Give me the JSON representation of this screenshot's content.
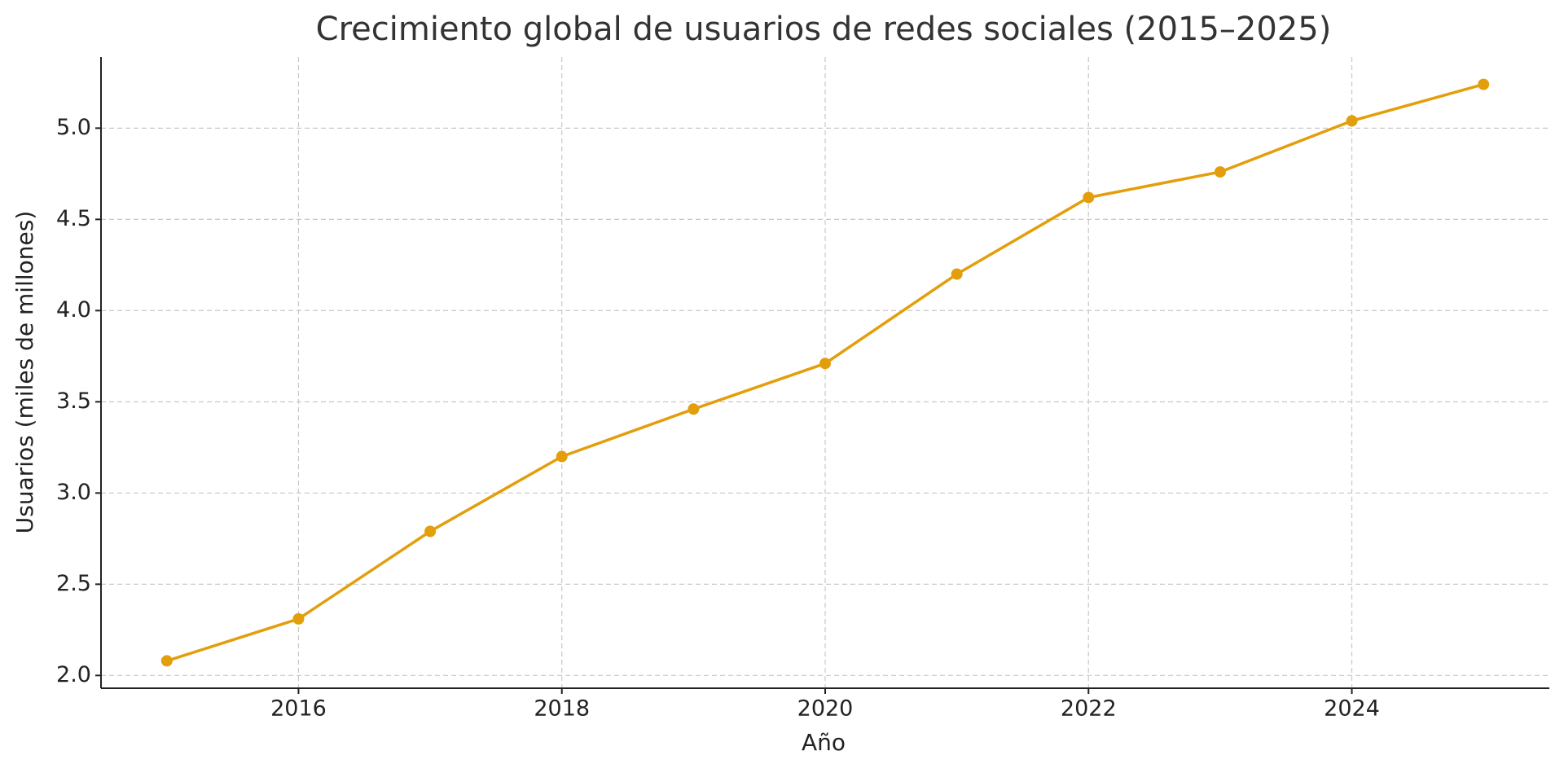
{
  "chart_data": {
    "type": "line",
    "title": "Crecimiento global de usuarios de redes sociales (2015–2025)",
    "x_label": "Año",
    "y_label": "Usuarios (miles de millones)",
    "x": [
      2015,
      2016,
      2017,
      2018,
      2019,
      2020,
      2021,
      2022,
      2023,
      2024,
      2025
    ],
    "values": [
      2.08,
      2.31,
      2.79,
      3.2,
      3.46,
      3.71,
      4.2,
      4.62,
      4.76,
      5.04,
      5.24
    ],
    "color": "#e39e0b",
    "xlim": [
      2014.5,
      2025.5
    ],
    "xticks": [
      2016,
      2018,
      2020,
      2022,
      2024
    ],
    "ylim": [
      1.93,
      5.39
    ],
    "yticks": [
      {
        "value": 2,
        "label": "2.0"
      },
      {
        "value": 2.5,
        "label": "2.5"
      },
      {
        "value": 3,
        "label": "3.0"
      },
      {
        "value": 3.5,
        "label": "3.5"
      },
      {
        "value": 4,
        "label": "4.0"
      },
      {
        "value": 4.5,
        "label": "4.5"
      },
      {
        "value": 5,
        "label": "5.0"
      }
    ],
    "grid": true
  }
}
